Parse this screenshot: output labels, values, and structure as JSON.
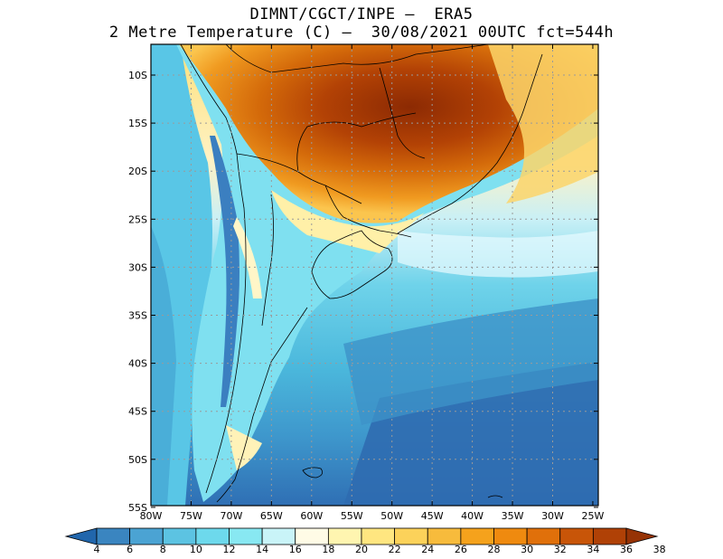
{
  "title": {
    "line1": "DIMNT/CGCT/INPE –  ERA5",
    "line2": "2 Metre Temperature (C) –  30/08/2021 00UTC fct=544h"
  },
  "map": {
    "lat_labels": [
      "10S",
      "15S",
      "20S",
      "25S",
      "30S",
      "35S",
      "40S",
      "45S",
      "50S",
      "55S"
    ],
    "lon_labels": [
      "80W",
      "75W",
      "70W",
      "65W",
      "60W",
      "55W",
      "50W",
      "45W",
      "40W",
      "35W",
      "30W",
      "25W"
    ]
  },
  "colorbar": {
    "labels": [
      "4",
      "6",
      "8",
      "10",
      "12",
      "14",
      "16",
      "18",
      "20",
      "22",
      "24",
      "26",
      "28",
      "30",
      "32",
      "34",
      "36",
      "38"
    ],
    "colors": [
      "#2166ac",
      "#3a85c0",
      "#4ba3d3",
      "#5cc3e2",
      "#6dd9ec",
      "#88e8f2",
      "#c9f4f8",
      "#fffbe6",
      "#fff5b0",
      "#ffe680",
      "#fcd25a",
      "#f7bb3c",
      "#f5a21c",
      "#ef8a0f",
      "#e0700a",
      "#c85508",
      "#b04106",
      "#963305"
    ]
  }
}
